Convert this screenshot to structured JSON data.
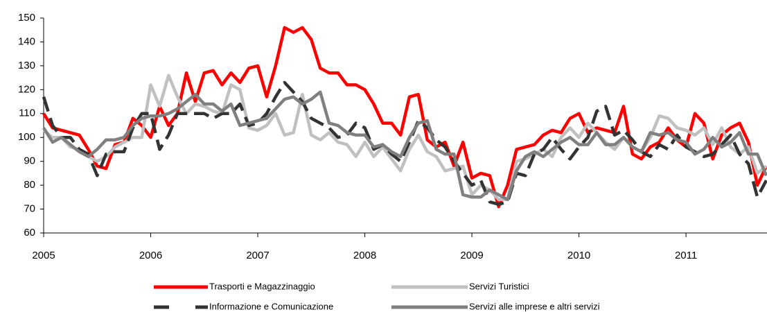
{
  "chart_data": {
    "type": "line",
    "categories": [
      "2005",
      null,
      null,
      null,
      null,
      null,
      null,
      null,
      null,
      null,
      null,
      null,
      "2006",
      null,
      null,
      null,
      null,
      null,
      null,
      null,
      null,
      null,
      null,
      null,
      "2007",
      null,
      null,
      null,
      null,
      null,
      null,
      null,
      null,
      null,
      null,
      null,
      "2008",
      null,
      null,
      null,
      null,
      null,
      null,
      null,
      null,
      null,
      null,
      null,
      "2009",
      null,
      null,
      null,
      null,
      null,
      null,
      null,
      null,
      null,
      null,
      null,
      "2010",
      null,
      null,
      null,
      null,
      null,
      null,
      null,
      null,
      null,
      null,
      null,
      "2011",
      null,
      null,
      null,
      null,
      null,
      null,
      null,
      null,
      null
    ],
    "ylim": [
      60,
      150
    ],
    "yticks": [
      60,
      70,
      80,
      90,
      100,
      110,
      120,
      130,
      140,
      150
    ],
    "series": [
      {
        "name": "Trasporti e Magazzinaggio",
        "color": "#ff0000",
        "dashed": false,
        "values": [
          110,
          104,
          103,
          102,
          101,
          95,
          88,
          87,
          97,
          98,
          108,
          105,
          100,
          113,
          105,
          110,
          127,
          115,
          127,
          128,
          122,
          127,
          123,
          129,
          130,
          117,
          130,
          146,
          144,
          146,
          141,
          129,
          127,
          127,
          122,
          122,
          120,
          114,
          106,
          106,
          101,
          117,
          118,
          99,
          96,
          98,
          88,
          98,
          83,
          85,
          84,
          71,
          80,
          95,
          96,
          97,
          101,
          103,
          102,
          108,
          110,
          102,
          104,
          103,
          102,
          113,
          93,
          91,
          96,
          98,
          104,
          99,
          96,
          110,
          106,
          91,
          101,
          104,
          106,
          98,
          80,
          88
        ]
      },
      {
        "name": "Servizi Turistici",
        "color": "#c0c0c0",
        "dashed": false,
        "values": [
          103,
          100,
          100,
          96,
          95,
          92,
          90,
          92,
          96,
          98,
          100,
          100,
          122,
          113,
          126,
          117,
          110,
          114,
          113,
          111,
          110,
          122,
          120,
          104,
          103,
          105,
          110,
          101,
          102,
          118,
          101,
          99,
          102,
          98,
          97,
          92,
          98,
          92,
          96,
          91,
          86,
          95,
          101,
          94,
          92,
          86,
          87,
          88,
          76,
          80,
          78,
          74,
          74,
          90,
          91,
          93,
          95,
          92,
          100,
          104,
          100,
          106,
          102,
          98,
          95,
          100,
          96,
          94,
          100,
          109,
          108,
          104,
          103,
          101,
          104,
          97,
          104,
          96,
          93,
          96,
          85,
          88
        ]
      },
      {
        "name": "Informazione e Comunicazione",
        "color": "#333333",
        "dashed": true,
        "values": [
          117,
          105,
          100,
          100,
          95,
          93,
          84,
          93,
          94,
          94,
          104,
          110,
          110,
          95,
          101,
          110,
          110,
          110,
          110,
          108,
          110,
          110,
          114,
          105,
          106,
          110,
          117,
          123,
          119,
          115,
          108,
          106,
          104,
          100,
          101,
          106,
          104,
          95,
          97,
          93,
          90,
          98,
          107,
          104,
          99,
          96,
          90,
          85,
          80,
          82,
          73,
          72,
          73,
          85,
          84,
          93,
          95,
          100,
          95,
          91,
          96,
          100,
          111,
          113,
          101,
          103,
          99,
          94,
          92,
          97,
          95,
          101,
          96,
          94,
          92,
          93,
          97,
          101,
          93,
          89,
          75,
          82
        ]
      },
      {
        "name": "Servizi alle imprese e altri servizi",
        "color": "#808080",
        "dashed": false,
        "values": [
          104,
          98,
          100,
          97,
          94,
          92,
          95,
          99,
          99,
          100,
          105,
          108,
          109,
          109,
          110,
          112,
          115,
          118,
          114,
          114,
          111,
          114,
          105,
          106,
          107,
          108,
          112,
          116,
          117,
          114,
          116,
          119,
          106,
          105,
          102,
          101,
          101,
          96,
          97,
          94,
          92,
          100,
          106,
          107,
          95,
          93,
          93,
          76,
          75,
          75,
          78,
          76,
          74,
          86,
          92,
          94,
          92,
          95,
          98,
          100,
          97,
          97,
          102,
          97,
          97,
          100,
          96,
          94,
          102,
          101,
          102,
          99,
          98,
          93,
          95,
          100,
          96,
          98,
          102,
          93,
          93,
          84
        ]
      }
    ]
  }
}
